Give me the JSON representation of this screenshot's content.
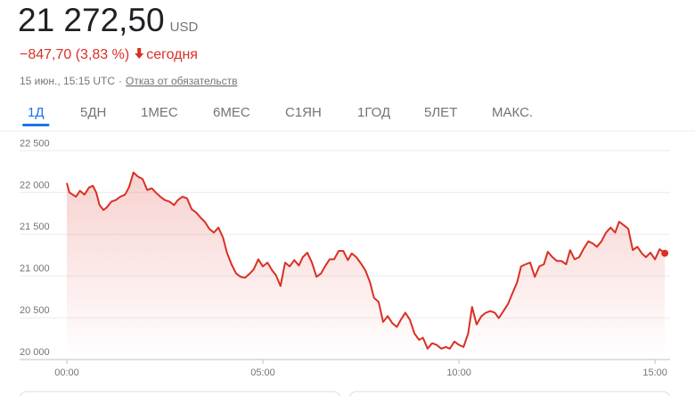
{
  "header": {
    "price": "21 272,50",
    "currency": "USD",
    "change": "−847,70 (3,83 %)",
    "period": "сегодня",
    "timestamp": "15 июн., 15:15 UTC",
    "separator": "·",
    "disclaimer": "Отказ от обязательств"
  },
  "tabs": {
    "items": [
      "1Д",
      "5ДН",
      "1МЕС",
      "6МЕС",
      "С1ЯН",
      "1ГОД",
      "5ЛЕТ",
      "МАКС."
    ],
    "selected": 0
  },
  "chart_data": {
    "type": "line",
    "color": "#d93025",
    "grid": true,
    "x": [
      0,
      4,
      14,
      20,
      27,
      34,
      40,
      45,
      50,
      56,
      61,
      68,
      75,
      82,
      89,
      95,
      102,
      109,
      116,
      123,
      130,
      136,
      143,
      150,
      157,
      164,
      170,
      177,
      184,
      191,
      198,
      205,
      211,
      218,
      225,
      232,
      239,
      245,
      252,
      259,
      266,
      273,
      280,
      286,
      293,
      300,
      307,
      314,
      320,
      327,
      334,
      341,
      348,
      355,
      361,
      368,
      375,
      382,
      389,
      395,
      402,
      409,
      416,
      423,
      430,
      436,
      443,
      450,
      457,
      464,
      470,
      477,
      484,
      491,
      498,
      505,
      511,
      518,
      525,
      532,
      539,
      545,
      552,
      559,
      566,
      573,
      580,
      586,
      593,
      600,
      607,
      614,
      620,
      627,
      634,
      641,
      648,
      655,
      661,
      668,
      675,
      682,
      689,
      695,
      702,
      709,
      716,
      723,
      730,
      736,
      743,
      750,
      757,
      764,
      770,
      777,
      784,
      791,
      798,
      805,
      811,
      818,
      825,
      832,
      839,
      845,
      852,
      859,
      866,
      873,
      880,
      886,
      893,
      900,
      907,
      914,
      915
    ],
    "values": [
      22114,
      22000,
      21950,
      22020,
      21975,
      22060,
      22080,
      22000,
      21850,
      21790,
      21820,
      21890,
      21910,
      21950,
      21975,
      22060,
      22240,
      22190,
      22160,
      22030,
      22050,
      22000,
      21950,
      21910,
      21890,
      21850,
      21910,
      21950,
      21930,
      21800,
      21760,
      21695,
      21650,
      21565,
      21520,
      21580,
      21460,
      21280,
      21140,
      21030,
      20990,
      20980,
      21030,
      21080,
      21200,
      21115,
      21160,
      21070,
      21010,
      20880,
      21160,
      21115,
      21190,
      21125,
      21225,
      21280,
      21160,
      20990,
      21030,
      21115,
      21200,
      21200,
      21300,
      21300,
      21190,
      21270,
      21225,
      21150,
      21065,
      20925,
      20740,
      20690,
      20450,
      20520,
      20435,
      20390,
      20475,
      20560,
      20475,
      20310,
      20235,
      20260,
      20130,
      20195,
      20175,
      20130,
      20150,
      20130,
      20215,
      20175,
      20150,
      20310,
      20630,
      20420,
      20515,
      20560,
      20580,
      20560,
      20495,
      20580,
      20665,
      20795,
      20925,
      21115,
      21140,
      21160,
      20990,
      21115,
      21140,
      21290,
      21225,
      21180,
      21180,
      21140,
      21310,
      21200,
      21225,
      21330,
      21415,
      21390,
      21350,
      21415,
      21520,
      21580,
      21520,
      21650,
      21610,
      21565,
      21310,
      21350,
      21270,
      21225,
      21280,
      21200,
      21320,
      21280,
      21272.5
    ],
    "xlim": [
      0,
      923
    ],
    "xticks": [
      {
        "value": 0,
        "label": "00:00"
      },
      {
        "value": 300,
        "label": "05:00"
      },
      {
        "value": 600,
        "label": "10:00"
      },
      {
        "value": 900,
        "label": "15:00"
      }
    ],
    "ylim": [
      20000,
      22600
    ],
    "yticks": [
      {
        "value": 20000,
        "label": "20 000"
      },
      {
        "value": 20500,
        "label": "20 500"
      },
      {
        "value": 21000,
        "label": "21 000"
      },
      {
        "value": 21500,
        "label": "21 500"
      },
      {
        "value": 22000,
        "label": "22 000"
      },
      {
        "value": 22500,
        "label": "22 500"
      }
    ]
  }
}
